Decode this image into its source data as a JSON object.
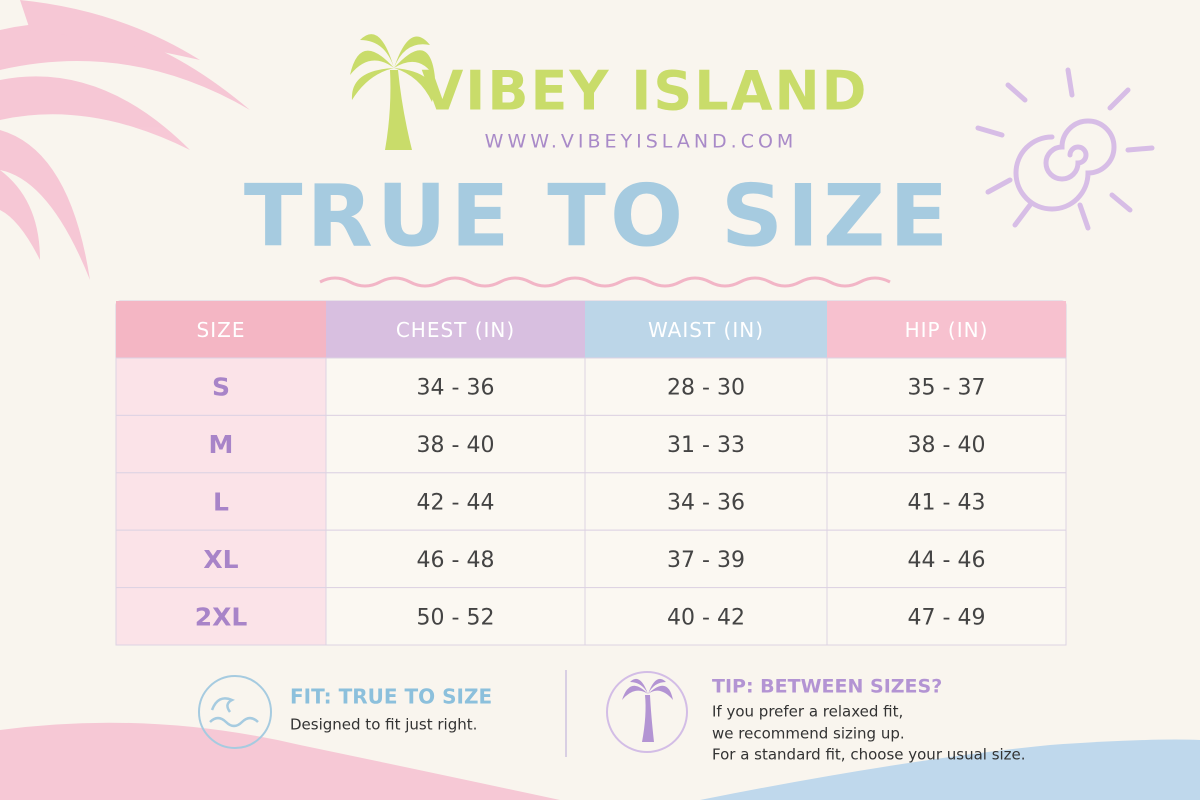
{
  "header": {
    "brand": "VIBEY ISLAND",
    "url": "WWW.VIBEYISLAND.COM",
    "title": "TRUE TO SIZE"
  },
  "table": {
    "columns": [
      "SIZE",
      "CHEST (IN)",
      "WAIST (IN)",
      "HIP (IN)"
    ],
    "rows": [
      [
        "S",
        "34 - 36",
        "28 - 30",
        "35 - 37"
      ],
      [
        "M",
        "38 - 40",
        "31 - 33",
        "38 - 40"
      ],
      [
        "L",
        "42 - 44",
        "34 - 36",
        "41 - 43"
      ],
      [
        "XL",
        "46 - 48",
        "37 - 39",
        "44 - 46"
      ],
      [
        "2XL",
        "50 - 52",
        "40 - 42",
        "47 - 49"
      ]
    ]
  },
  "fit": {
    "title": "FIT: TRUE TO SIZE",
    "text": "Designed to fit just right."
  },
  "tip": {
    "title": "TIP: BETWEEN SIZES?",
    "lines": [
      "If you prefer a relaxed fit,",
      "we recommend sizing up.",
      "For a standard fit, choose your usual size."
    ]
  }
}
